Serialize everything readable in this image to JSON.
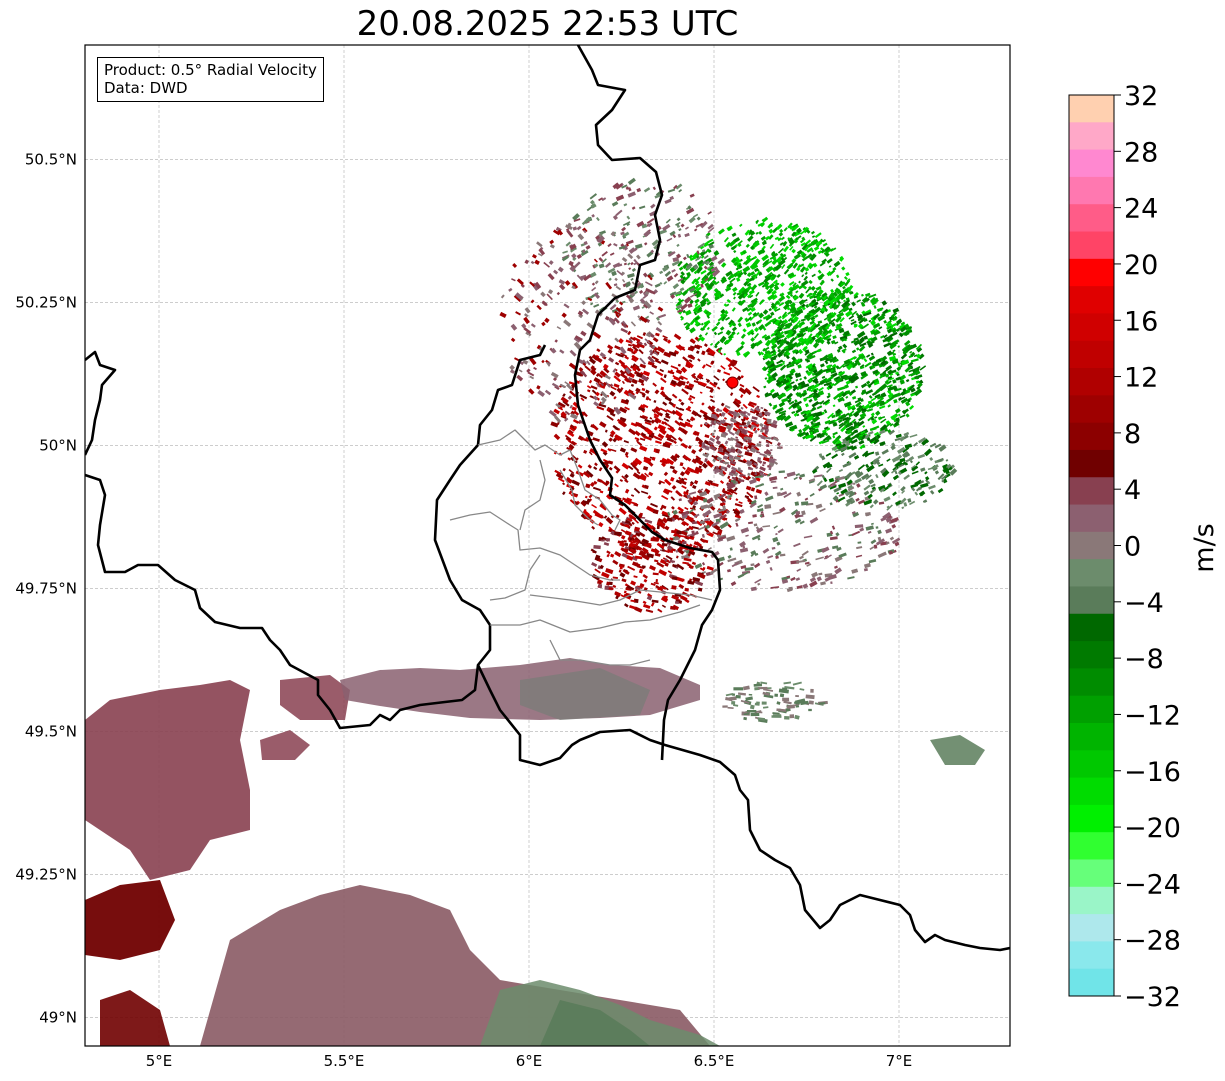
{
  "title": "20.08.2025 22:53 UTC",
  "info_box": {
    "product": "Product: 0.5° Radial Velocity",
    "data": "Data: DWD"
  },
  "map": {
    "lon_range": [
      4.8,
      7.3
    ],
    "lat_range": [
      48.95,
      50.7
    ],
    "radar_site": {
      "lon": 6.55,
      "lat": 50.11
    },
    "gridlines": true
  },
  "axis_labels": {
    "lon": [
      {
        "value": 5.0,
        "label": "5°E"
      },
      {
        "value": 5.5,
        "label": "5.5°E"
      },
      {
        "value": 6.0,
        "label": "6°E"
      },
      {
        "value": 6.5,
        "label": "6.5°E"
      },
      {
        "value": 7.0,
        "label": "7°E"
      }
    ],
    "lat": [
      {
        "value": 50.5,
        "label": "50.5°N"
      },
      {
        "value": 50.25,
        "label": "50.25°N"
      },
      {
        "value": 50.0,
        "label": "50°N"
      },
      {
        "value": 49.75,
        "label": "49.75°N"
      },
      {
        "value": 49.5,
        "label": "49.5°N"
      },
      {
        "value": 49.25,
        "label": "49.25°N"
      },
      {
        "value": 49.0,
        "label": "49°N"
      }
    ]
  },
  "colorbar": {
    "unit": "m/s",
    "min": -32,
    "max": 32,
    "ticks": [
      {
        "value": 32,
        "label": "32"
      },
      {
        "value": 28,
        "label": "28"
      },
      {
        "value": 24,
        "label": "24"
      },
      {
        "value": 20,
        "label": "20"
      },
      {
        "value": 16,
        "label": "16"
      },
      {
        "value": 12,
        "label": "12"
      },
      {
        "value": 8,
        "label": "8"
      },
      {
        "value": 4,
        "label": "4"
      },
      {
        "value": 0,
        "label": "0"
      },
      {
        "value": -4,
        "label": "−4"
      },
      {
        "value": -8,
        "label": "−8"
      },
      {
        "value": -12,
        "label": "−12"
      },
      {
        "value": -16,
        "label": "−16"
      },
      {
        "value": -20,
        "label": "−20"
      },
      {
        "value": -24,
        "label": "−24"
      },
      {
        "value": -28,
        "label": "−28"
      },
      {
        "value": -32,
        "label": "−32"
      }
    ],
    "colors_top_to_bottom": [
      "#ffd0b0",
      "#ffa8c8",
      "#ff88d0",
      "#ff78b0",
      "#ff5c88",
      "#ff4466",
      "#ff0000",
      "#e00000",
      "#d00000",
      "#c00000",
      "#b00000",
      "#9e0000",
      "#8c0000",
      "#700000",
      "#884050",
      "#8c6070",
      "#8a7878",
      "#6c8c6c",
      "#5a7c5a",
      "#006800",
      "#007a00",
      "#008c00",
      "#00a000",
      "#00b400",
      "#00c800",
      "#00dc00",
      "#00f000",
      "#30ff30",
      "#66ff7a",
      "#9af5c8",
      "#aee8ec",
      "#8ae8ec",
      "#70e4e8"
    ]
  }
}
